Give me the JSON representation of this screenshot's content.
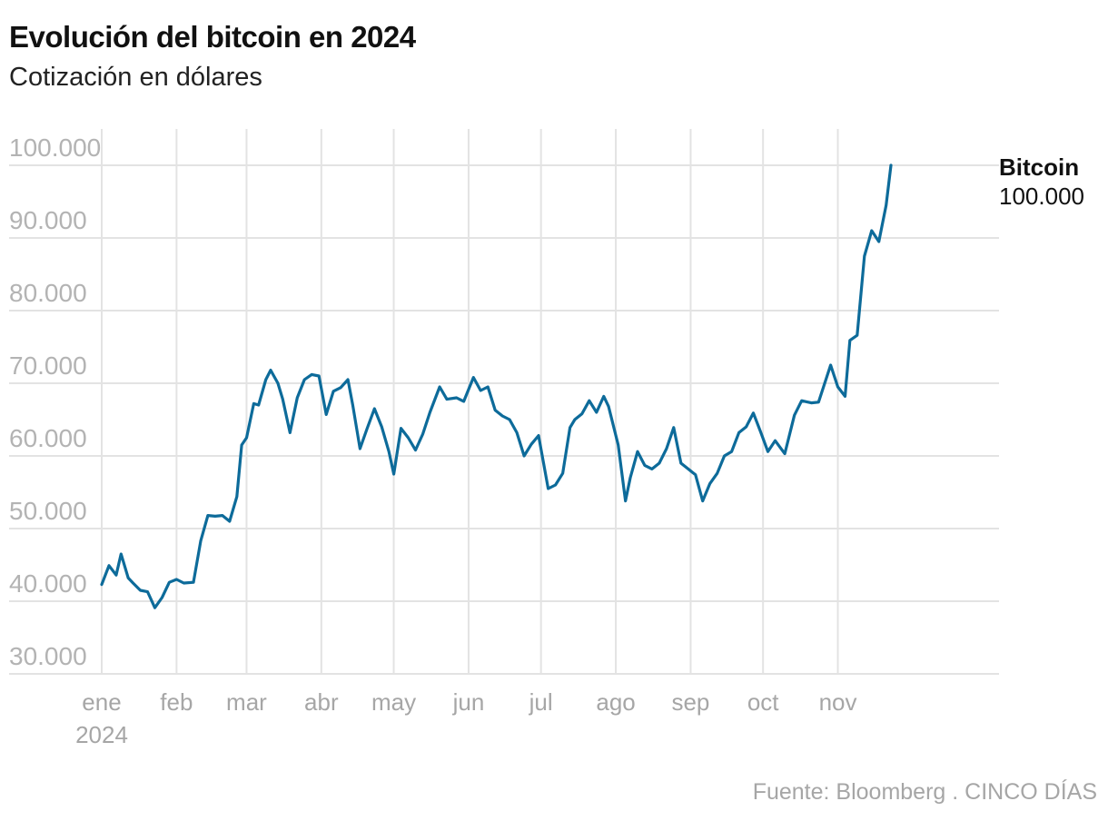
{
  "header": {
    "title": "Evolución del bitcoin en 2024",
    "subtitle": "Cotización en dólares"
  },
  "footer": {
    "source": "Fuente: Bloomberg . CINCO DÍAS"
  },
  "colors": {
    "line": "#0d6b9a",
    "grid": "#e3e3e3",
    "tick_text": "#b3b3b3"
  },
  "chart_data": {
    "type": "line",
    "title": "Evolución del bitcoin en 2024",
    "subtitle": "Cotización en dólares",
    "xlabel": "",
    "ylabel": "",
    "ylim": [
      30000,
      100000
    ],
    "y_ticks": [
      30000,
      40000,
      50000,
      60000,
      70000,
      80000,
      90000,
      100000
    ],
    "y_tick_labels": [
      "30.000",
      "40.000",
      "50.000",
      "60.000",
      "70.000",
      "80.000",
      "90.000",
      "100.000"
    ],
    "x_ticks": [
      {
        "date": "2024-01-01",
        "label": "ene",
        "sublabel": "2024"
      },
      {
        "date": "2024-02-01",
        "label": "feb"
      },
      {
        "date": "2024-03-01",
        "label": "mar"
      },
      {
        "date": "2024-04-01",
        "label": "abr"
      },
      {
        "date": "2024-05-01",
        "label": "may"
      },
      {
        "date": "2024-06-01",
        "label": "jun"
      },
      {
        "date": "2024-07-01",
        "label": "jul"
      },
      {
        "date": "2024-08-01",
        "label": "ago"
      },
      {
        "date": "2024-09-01",
        "label": "sep"
      },
      {
        "date": "2024-10-01",
        "label": "oct"
      },
      {
        "date": "2024-11-01",
        "label": "nov"
      }
    ],
    "xlim": [
      "2024-01-01",
      "2024-12-31"
    ],
    "grid": true,
    "end_label": {
      "name": "Bitcoin",
      "value": "100.000"
    },
    "series": [
      {
        "name": "Bitcoin",
        "x": [
          "2024-01-01",
          "2024-01-04",
          "2024-01-07",
          "2024-01-09",
          "2024-01-12",
          "2024-01-14",
          "2024-01-17",
          "2024-01-20",
          "2024-01-23",
          "2024-01-26",
          "2024-01-29",
          "2024-02-01",
          "2024-02-04",
          "2024-02-08",
          "2024-02-11",
          "2024-02-14",
          "2024-02-17",
          "2024-02-20",
          "2024-02-23",
          "2024-02-26",
          "2024-02-28",
          "2024-03-01",
          "2024-03-04",
          "2024-03-06",
          "2024-03-09",
          "2024-03-11",
          "2024-03-14",
          "2024-03-16",
          "2024-03-19",
          "2024-03-22",
          "2024-03-25",
          "2024-03-28",
          "2024-03-31",
          "2024-04-03",
          "2024-04-06",
          "2024-04-09",
          "2024-04-12",
          "2024-04-14",
          "2024-04-17",
          "2024-04-20",
          "2024-04-23",
          "2024-04-26",
          "2024-04-29",
          "2024-05-01",
          "2024-05-04",
          "2024-05-07",
          "2024-05-10",
          "2024-05-13",
          "2024-05-16",
          "2024-05-20",
          "2024-05-23",
          "2024-05-27",
          "2024-05-30",
          "2024-06-03",
          "2024-06-06",
          "2024-06-09",
          "2024-06-12",
          "2024-06-15",
          "2024-06-18",
          "2024-06-21",
          "2024-06-24",
          "2024-06-27",
          "2024-06-30",
          "2024-07-04",
          "2024-07-07",
          "2024-07-10",
          "2024-07-13",
          "2024-07-15",
          "2024-07-18",
          "2024-07-21",
          "2024-07-24",
          "2024-07-27",
          "2024-07-29",
          "2024-08-02",
          "2024-08-05",
          "2024-08-07",
          "2024-08-10",
          "2024-08-13",
          "2024-08-16",
          "2024-08-19",
          "2024-08-22",
          "2024-08-25",
          "2024-08-28",
          "2024-08-31",
          "2024-09-03",
          "2024-09-06",
          "2024-09-09",
          "2024-09-12",
          "2024-09-15",
          "2024-09-18",
          "2024-09-21",
          "2024-09-24",
          "2024-09-27",
          "2024-09-30",
          "2024-10-03",
          "2024-10-06",
          "2024-10-10",
          "2024-10-14",
          "2024-10-17",
          "2024-10-21",
          "2024-10-24",
          "2024-10-29",
          "2024-11-01",
          "2024-11-04",
          "2024-11-06",
          "2024-11-09",
          "2024-11-12",
          "2024-11-15",
          "2024-11-18",
          "2024-11-21",
          "2024-11-23"
        ],
        "values": [
          42300,
          44900,
          43600,
          46500,
          43200,
          42500,
          41500,
          41300,
          39100,
          40500,
          42600,
          43000,
          42500,
          42600,
          48300,
          51800,
          51700,
          51800,
          51000,
          54400,
          61500,
          62500,
          67200,
          67000,
          70500,
          71800,
          70000,
          67800,
          63200,
          68000,
          70500,
          71200,
          71000,
          65700,
          68900,
          69400,
          70500,
          67000,
          61000,
          63800,
          66500,
          64000,
          60600,
          57500,
          63800,
          62500,
          60800,
          63000,
          66000,
          69500,
          67800,
          68000,
          67500,
          70800,
          69000,
          69500,
          66300,
          65500,
          65000,
          63200,
          60000,
          61600,
          62800,
          55500,
          56000,
          57600,
          63900,
          65000,
          65800,
          67600,
          66000,
          68200,
          66800,
          61500,
          53800,
          57000,
          60600,
          58700,
          58200,
          59000,
          61000,
          63900,
          59000,
          58200,
          57400,
          53800,
          56200,
          57600,
          60000,
          60600,
          63200,
          64000,
          65900,
          63300,
          60600,
          62100,
          60300,
          65600,
          67600,
          67300,
          67400,
          72500,
          69500,
          68200,
          75900,
          76600,
          87500,
          91000,
          89500,
          94500,
          100000
        ]
      }
    ]
  }
}
